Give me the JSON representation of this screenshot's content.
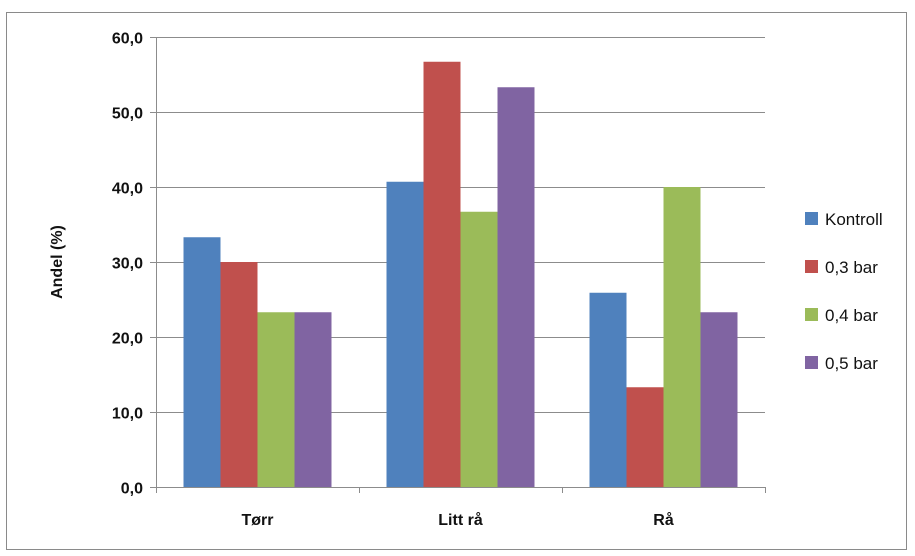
{
  "chart_data": {
    "type": "bar",
    "title": "",
    "xlabel": "",
    "ylabel": "Andel (%)",
    "categories": [
      "Tørr",
      "Litt rå",
      "Rå"
    ],
    "ylim": [
      0,
      60
    ],
    "ytick_step": 10,
    "ytick_labels": [
      "0,0",
      "10,0",
      "20,0",
      "30,0",
      "40,0",
      "50,0",
      "60,0"
    ],
    "grid": true,
    "legend_position": "right",
    "series": [
      {
        "name": "Kontroll",
        "color": "#4F81BD",
        "values": [
          33.3,
          40.7,
          25.9
        ]
      },
      {
        "name": "0,3 bar",
        "color": "#C0504D",
        "values": [
          30.0,
          56.7,
          13.3
        ]
      },
      {
        "name": "0,4 bar",
        "color": "#9BBB59",
        "values": [
          23.3,
          36.7,
          40.0
        ]
      },
      {
        "name": "0,5 bar",
        "color": "#8064A2",
        "values": [
          23.3,
          53.3,
          23.3
        ]
      }
    ]
  }
}
